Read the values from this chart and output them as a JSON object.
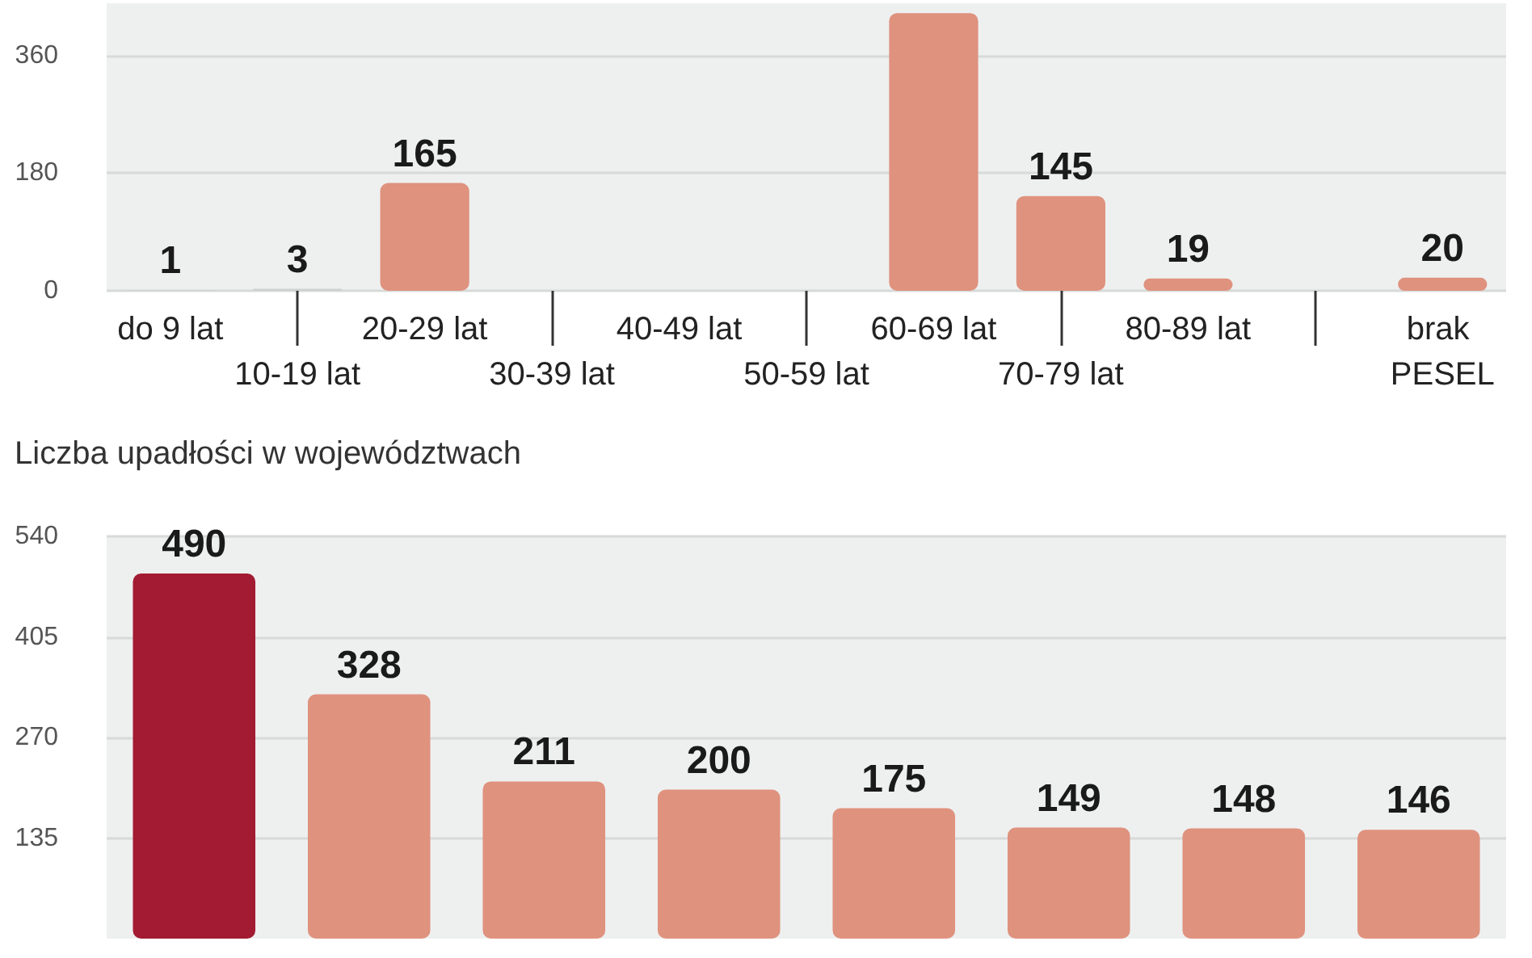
{
  "chart_data": [
    {
      "type": "bar",
      "categories": [
        "do 9 lat",
        "10-19 lat",
        "20-29 lat",
        "30-39 lat",
        "40-49 lat",
        "50-59 lat",
        "60-69 lat",
        "70-79 lat",
        "80-89 lat",
        null,
        "brak PESEL"
      ],
      "values": [
        1,
        3,
        165,
        null,
        null,
        null,
        425,
        145,
        19,
        null,
        20
      ],
      "value_labels": [
        "1",
        "3",
        "165",
        null,
        null,
        null,
        null,
        "145",
        "19",
        null,
        "20"
      ],
      "colors": [
        "#cfd1d1",
        "#cfd1d1",
        "#df927e",
        "#a31b32",
        "#df927e",
        "#df927e",
        "#df927e",
        "#df927e",
        "#df927e",
        "#df927e",
        "#df927e"
      ],
      "ylim": [
        0,
        440
      ],
      "yticks": [
        0,
        180,
        360
      ],
      "grid": "y"
    },
    {
      "type": "bar",
      "title": "Liczba upadłości w województwach",
      "categories": [
        null,
        null,
        null,
        null,
        null,
        null,
        null,
        null
      ],
      "values": [
        490,
        328,
        211,
        200,
        175,
        149,
        148,
        146
      ],
      "colors": [
        "#a31b32",
        "#df927e",
        "#df927e",
        "#df927e",
        "#df927e",
        "#df927e",
        "#df927e",
        "#df927e"
      ],
      "ylim": [
        0,
        540
      ],
      "yticks": [
        135,
        270,
        405,
        540
      ],
      "grid": "y",
      "data_labels": true
    }
  ]
}
